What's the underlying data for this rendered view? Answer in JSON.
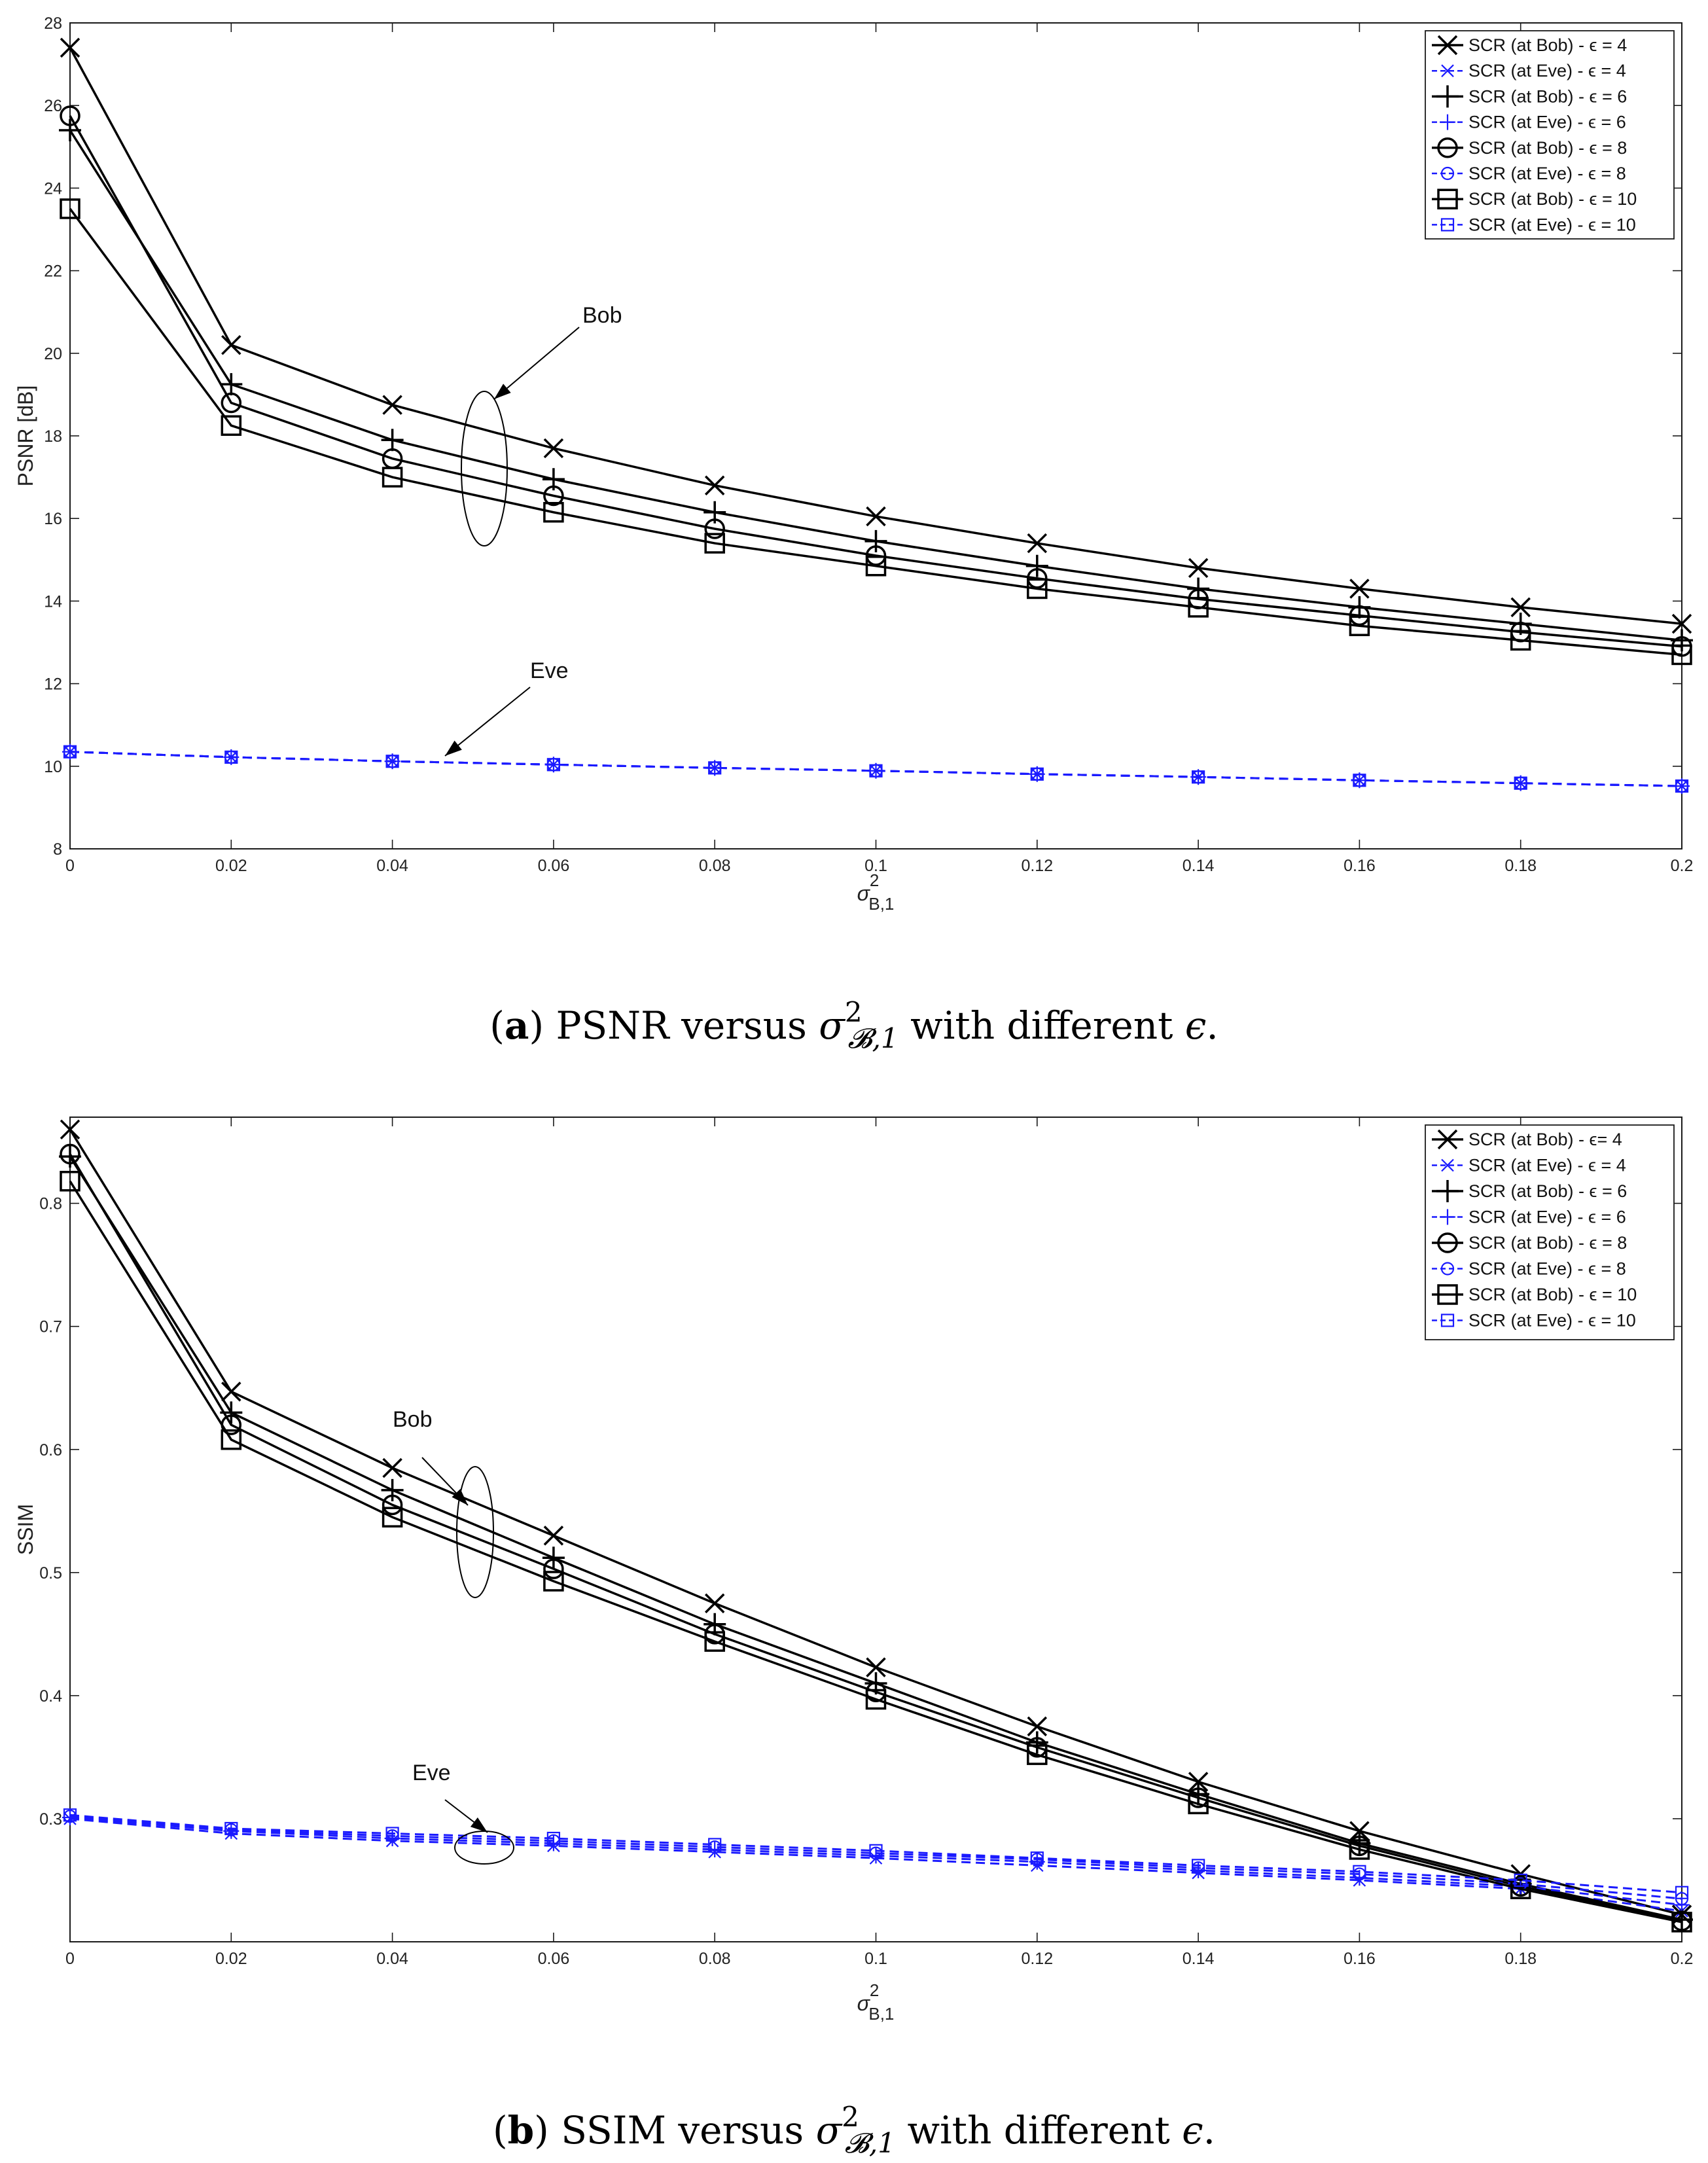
{
  "chart_data": [
    {
      "type": "line",
      "panel": "a",
      "ylabel": "PSNR [dB]",
      "xlabel_base": "σ",
      "xlabel_sup": "2",
      "xlabel_sub": "B,1",
      "xlim": [
        0,
        0.2
      ],
      "ylim": [
        8,
        28
      ],
      "xticks": [
        "0",
        "0.02",
        "0.04",
        "0.06",
        "0.08",
        "0.1",
        "0.12",
        "0.14",
        "0.16",
        "0.18",
        "0.2"
      ],
      "yticks": [
        "8",
        "10",
        "12",
        "14",
        "16",
        "18",
        "20",
        "22",
        "24",
        "26",
        "28"
      ],
      "x": [
        0,
        0.02,
        0.04,
        0.06,
        0.08,
        0.1,
        0.12,
        0.14,
        0.16,
        0.18,
        0.2
      ],
      "series": [
        {
          "name": "SCR (at Bob) - ϵ = 4",
          "color": "#000000",
          "marker": "x",
          "style": "solid",
          "values": [
            27.4,
            20.2,
            18.75,
            17.7,
            16.8,
            16.05,
            15.4,
            14.8,
            14.3,
            13.85,
            13.45
          ]
        },
        {
          "name": "SCR (at Eve) - ϵ = 4",
          "color": "#1a1aff",
          "marker": "x",
          "style": "dashed",
          "values": [
            10.35,
            10.22,
            10.12,
            10.04,
            9.96,
            9.89,
            9.81,
            9.74,
            9.66,
            9.59,
            9.52
          ]
        },
        {
          "name": "SCR (at Bob) - ϵ = 6",
          "color": "#000000",
          "marker": "+",
          "style": "solid",
          "values": [
            25.4,
            19.25,
            17.9,
            16.95,
            16.15,
            15.45,
            14.85,
            14.3,
            13.85,
            13.45,
            13.05
          ]
        },
        {
          "name": "SCR (at Eve) - ϵ = 6",
          "color": "#1a1aff",
          "marker": "+",
          "style": "dashed",
          "values": [
            10.35,
            10.22,
            10.12,
            10.04,
            9.96,
            9.89,
            9.81,
            9.74,
            9.66,
            9.59,
            9.52
          ]
        },
        {
          "name": "SCR (at Bob) - ϵ = 8",
          "color": "#000000",
          "marker": "o",
          "style": "solid",
          "values": [
            25.75,
            18.8,
            17.45,
            16.55,
            15.75,
            15.1,
            14.55,
            14.05,
            13.65,
            13.25,
            12.9
          ]
        },
        {
          "name": "SCR (at Eve) - ϵ = 8",
          "color": "#1a1aff",
          "marker": "o",
          "style": "dashed",
          "values": [
            10.35,
            10.22,
            10.12,
            10.04,
            9.96,
            9.89,
            9.81,
            9.74,
            9.66,
            9.59,
            9.52
          ]
        },
        {
          "name": "SCR (at Bob) - ϵ = 10",
          "color": "#000000",
          "marker": "s",
          "style": "solid",
          "values": [
            23.5,
            18.25,
            17.0,
            16.15,
            15.4,
            14.85,
            14.3,
            13.85,
            13.4,
            13.05,
            12.7
          ]
        },
        {
          "name": "SCR (at Eve) - ϵ = 10",
          "color": "#1a1aff",
          "marker": "s",
          "style": "dashed",
          "values": [
            10.35,
            10.22,
            10.12,
            10.04,
            9.96,
            9.89,
            9.81,
            9.74,
            9.66,
            9.59,
            9.52
          ]
        }
      ],
      "annotations": [
        "Bob",
        "Eve"
      ],
      "legend_position": "top-right",
      "grid": false,
      "caption": {
        "label": "a",
        "text_before": " PSNR versus ",
        "text_after": " with different ",
        "epsilon": "ϵ",
        "period": "."
      }
    },
    {
      "type": "line",
      "panel": "b",
      "ylabel": "SSIM",
      "xlabel_base": "σ",
      "xlabel_sup": "2",
      "xlabel_sub": "B,1",
      "xlim": [
        0,
        0.2
      ],
      "ylim": [
        0.2,
        0.87
      ],
      "xticks": [
        "0",
        "0.02",
        "0.04",
        "0.06",
        "0.08",
        "0.1",
        "0.12",
        "0.14",
        "0.16",
        "0.18",
        "0.2"
      ],
      "yticks": [
        "0.3",
        "0.4",
        "0.5",
        "0.6",
        "0.7",
        "0.8"
      ],
      "x": [
        0,
        0.02,
        0.04,
        0.06,
        0.08,
        0.1,
        0.12,
        0.14,
        0.16,
        0.18,
        0.2
      ],
      "series": [
        {
          "name": "SCR (at Bob) - ϵ= 4",
          "color": "#000000",
          "marker": "x",
          "style": "solid",
          "values": [
            0.86,
            0.647,
            0.585,
            0.53,
            0.475,
            0.423,
            0.375,
            0.33,
            0.29,
            0.255,
            0.222
          ]
        },
        {
          "name": "SCR (at Eve) - ϵ = 4",
          "color": "#1a1aff",
          "marker": "x",
          "style": "dashed",
          "values": [
            0.3,
            0.288,
            0.282,
            0.278,
            0.273,
            0.268,
            0.262,
            0.256,
            0.25,
            0.243,
            0.225
          ]
        },
        {
          "name": "SCR (at Bob) - ϵ = 6",
          "color": "#000000",
          "marker": "+",
          "style": "solid",
          "values": [
            0.838,
            0.63,
            0.567,
            0.512,
            0.458,
            0.41,
            0.362,
            0.32,
            0.28,
            0.247,
            0.218
          ]
        },
        {
          "name": "SCR (at Eve) - ϵ = 6",
          "color": "#1a1aff",
          "marker": "+",
          "style": "dashed",
          "values": [
            0.301,
            0.29,
            0.284,
            0.28,
            0.275,
            0.27,
            0.265,
            0.258,
            0.252,
            0.245,
            0.23
          ]
        },
        {
          "name": "SCR (at Bob) - ϵ = 8",
          "color": "#000000",
          "marker": "o",
          "style": "solid",
          "values": [
            0.84,
            0.62,
            0.555,
            0.503,
            0.45,
            0.403,
            0.358,
            0.317,
            0.278,
            0.245,
            0.217
          ]
        },
        {
          "name": "SCR (at Eve) - ϵ = 8",
          "color": "#1a1aff",
          "marker": "o",
          "style": "dashed",
          "values": [
            0.302,
            0.291,
            0.286,
            0.282,
            0.277,
            0.272,
            0.267,
            0.26,
            0.255,
            0.247,
            0.235
          ]
        },
        {
          "name": "SCR (at Bob) - ϵ = 10",
          "color": "#000000",
          "marker": "s",
          "style": "solid",
          "values": [
            0.818,
            0.608,
            0.545,
            0.493,
            0.444,
            0.397,
            0.352,
            0.312,
            0.275,
            0.243,
            0.216
          ]
        },
        {
          "name": "SCR (at Eve) - ϵ = 10",
          "color": "#1a1aff",
          "marker": "s",
          "style": "dashed",
          "values": [
            0.303,
            0.292,
            0.288,
            0.284,
            0.279,
            0.274,
            0.268,
            0.262,
            0.257,
            0.25,
            0.24
          ]
        }
      ],
      "annotations": [
        "Bob",
        "Eve"
      ],
      "legend_position": "top-right",
      "grid": false,
      "caption": {
        "label": "b",
        "text_before": " SSIM versus ",
        "text_after": " with different ",
        "epsilon": "ϵ",
        "period": "."
      }
    }
  ]
}
